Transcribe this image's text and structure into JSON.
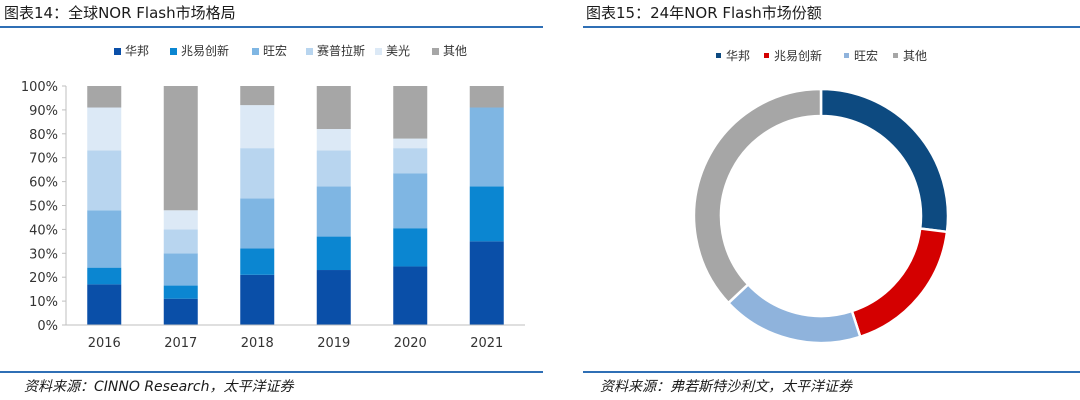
{
  "left_panel": {
    "title": "图表14：全球NOR Flash市场格局",
    "source": "资料来源：CINNO Research，太平洋证券"
  },
  "right_panel": {
    "title": "图表15：24年NOR Flash市场份额",
    "source": "资料来源：弗若斯特沙利文，太平洋证券"
  },
  "chart_data": [
    {
      "type": "bar",
      "stacked": true,
      "categories": [
        "2016",
        "2017",
        "2018",
        "2019",
        "2020",
        "2021"
      ],
      "ylim": [
        0,
        100
      ],
      "yticks": [
        "0%",
        "10%",
        "20%",
        "30%",
        "40%",
        "50%",
        "60%",
        "70%",
        "80%",
        "90%",
        "100%"
      ],
      "legend_position": "top",
      "series": [
        {
          "name": "华邦",
          "color": "#0a4fa8",
          "values": [
            17,
            11,
            21,
            23,
            24.5,
            35
          ]
        },
        {
          "name": "兆易创新",
          "color": "#0b86d1",
          "values": [
            7,
            5.5,
            11,
            14,
            16,
            23
          ]
        },
        {
          "name": "旺宏",
          "color": "#7fb6e3",
          "values": [
            24,
            13.5,
            21,
            21,
            23,
            33
          ]
        },
        {
          "name": "赛普拉斯",
          "color": "#b8d5ef",
          "values": [
            25,
            10,
            21,
            15,
            10.5,
            0
          ]
        },
        {
          "name": "美光",
          "color": "#dce9f6",
          "values": [
            18,
            8,
            18,
            9,
            4,
            0
          ]
        },
        {
          "name": "其他",
          "color": "#a6a6a6",
          "values": [
            9,
            52,
            8,
            18,
            22,
            9
          ]
        }
      ]
    },
    {
      "type": "pie",
      "donut": true,
      "legend_position": "top",
      "slices": [
        {
          "name": "华邦",
          "color": "#0d4a80",
          "value": 27
        },
        {
          "name": "兆易创新",
          "color": "#d40000",
          "value": 18
        },
        {
          "name": "旺宏",
          "color": "#8fb3dc",
          "value": 18
        },
        {
          "name": "其他",
          "color": "#a6a6a6",
          "value": 37
        }
      ]
    }
  ]
}
